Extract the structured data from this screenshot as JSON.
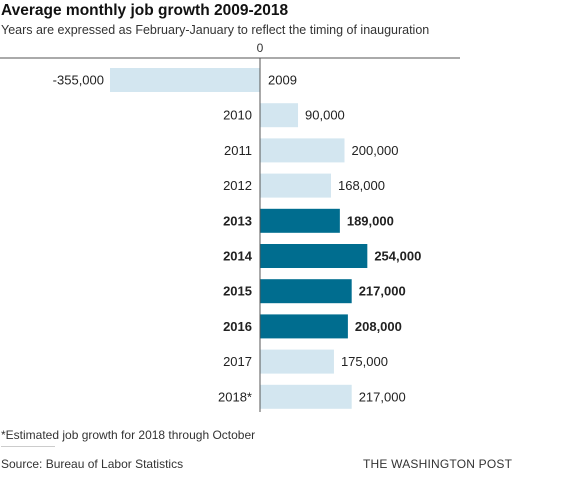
{
  "chart_data": {
    "type": "bar",
    "orientation": "horizontal",
    "title": "Average monthly job growth 2009-2018",
    "subtitle": "Years are expressed as February-January to reflect the timing of inauguration",
    "zero_label": "0",
    "categories": [
      "2009",
      "2010",
      "2011",
      "2012",
      "2013",
      "2014",
      "2015",
      "2016",
      "2017",
      "2018*"
    ],
    "values": [
      -355000,
      90000,
      200000,
      168000,
      189000,
      254000,
      217000,
      208000,
      175000,
      217000
    ],
    "value_labels": [
      "-355,000",
      "90,000",
      "200,000",
      "168,000",
      "189,000",
      "254,000",
      "217,000",
      "208,000",
      "175,000",
      "217,000"
    ],
    "highlighted": [
      false,
      false,
      false,
      false,
      true,
      true,
      true,
      true,
      false,
      false
    ],
    "colors": {
      "default": "#d3e6f0",
      "highlight": "#006d8f",
      "axis": "#555555"
    },
    "grid": false,
    "legend": false
  },
  "footer": {
    "footnote": "*Estimated job growth for 2018 through October",
    "source": "Source: Bureau of Labor Statistics",
    "credit": "THE WASHINGTON POST"
  }
}
